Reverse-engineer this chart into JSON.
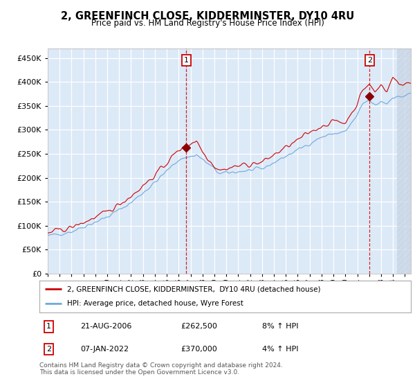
{
  "title": "2, GREENFINCH CLOSE, KIDDERMINSTER, DY10 4RU",
  "subtitle": "Price paid vs. HM Land Registry's House Price Index (HPI)",
  "ytick_values": [
    0,
    50000,
    100000,
    150000,
    200000,
    250000,
    300000,
    350000,
    400000,
    450000
  ],
  "ylim": [
    0,
    470000
  ],
  "xlim_start": 1995.0,
  "xlim_end": 2025.5,
  "hpi_color": "#6fa8dc",
  "house_color": "#cc0000",
  "plot_bg": "#dce9f7",
  "grid_color": "#ffffff",
  "legend_line1": "2, GREENFINCH CLOSE, KIDDERMINSTER,  DY10 4RU (detached house)",
  "legend_line2": "HPI: Average price, detached house, Wyre Forest",
  "table_row1_num": "1",
  "table_row1_date": "21-AUG-2006",
  "table_row1_price": "£262,500",
  "table_row1_hpi": "8% ↑ HPI",
  "table_row2_num": "2",
  "table_row2_date": "07-JAN-2022",
  "table_row2_price": "£370,000",
  "table_row2_hpi": "4% ↑ HPI",
  "footer": "Contains HM Land Registry data © Crown copyright and database right 2024.\nThis data is licensed under the Open Government Licence v3.0.",
  "sale1_x": 2006.64,
  "sale1_y": 262500,
  "sale2_x": 2022.03,
  "sale2_y": 370000,
  "hatching_start": 2024.33
}
